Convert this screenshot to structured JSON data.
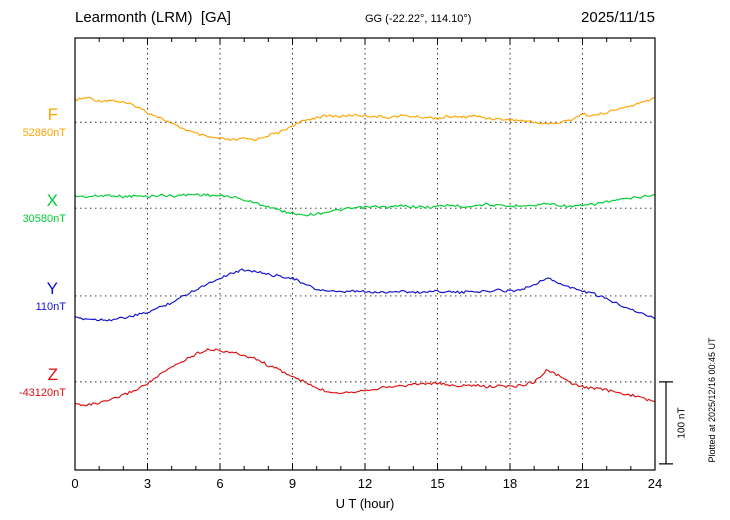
{
  "header": {
    "station": "Learmonth (LRM)  [GA]",
    "coords": "GG (-22.22°, 114.10°)",
    "date": "2025/11/15"
  },
  "channels": [
    {
      "id": "F",
      "label": "F",
      "value_label": "52860nT",
      "color": "#FFA500"
    },
    {
      "id": "X",
      "label": "X",
      "value_label": "30580nT",
      "color": "#00CC33"
    },
    {
      "id": "Y",
      "label": "Y",
      "value_label": "110nT",
      "color": "#1111CC"
    },
    {
      "id": "Z",
      "label": "Z",
      "value_label": "-43120nT",
      "color": "#DD1111"
    }
  ],
  "xaxis": {
    "label": "U T (hour)",
    "ticks": [
      0,
      3,
      6,
      9,
      12,
      15,
      18,
      21,
      24
    ],
    "range": [
      0,
      24
    ]
  },
  "scale_bar": {
    "label": "100 nT",
    "nT": 100
  },
  "side_note": "Plotted at 2025/12/16 00:45 UT",
  "chart_data": {
    "type": "line",
    "title": "Learmonth (LRM) [GA] magnetogram",
    "xlabel": "U T (hour)",
    "x_range_hours": [
      0,
      24
    ],
    "x_step_hours": 0.5,
    "grid": "dotted vertical every 3 h, dotted horizontal at each channel baseline",
    "scale_bar_nT": 100,
    "series": [
      {
        "name": "F",
        "baseline_nT": 52860,
        "offsets_nT": [
          27,
          30,
          26,
          27,
          24,
          20,
          12,
          6,
          -2,
          -8,
          -14,
          -18,
          -20,
          -22,
          -20,
          -21,
          -16,
          -12,
          -4,
          2,
          6,
          8,
          7,
          9,
          8,
          7,
          6,
          8,
          7,
          6,
          5,
          7,
          6,
          8,
          5,
          4,
          3,
          2,
          0,
          -2,
          -1,
          3,
          10,
          8,
          12,
          16,
          20,
          24,
          30
        ]
      },
      {
        "name": "X",
        "baseline_nT": 30580,
        "offsets_nT": [
          15,
          14,
          15,
          16,
          14,
          15,
          14,
          16,
          15,
          16,
          17,
          16,
          15,
          14,
          10,
          6,
          2,
          -3,
          -6,
          -8,
          -7,
          -4,
          -2,
          0,
          1,
          2,
          1,
          3,
          2,
          1,
          2,
          4,
          2,
          3,
          5,
          3,
          2,
          4,
          3,
          6,
          4,
          2,
          3,
          5,
          8,
          10,
          12,
          14,
          17
        ]
      },
      {
        "name": "Y",
        "baseline_nT": 110,
        "offsets_nT": [
          -27,
          -28,
          -29,
          -29,
          -27,
          -24,
          -20,
          -14,
          -8,
          0,
          8,
          15,
          22,
          28,
          32,
          30,
          26,
          24,
          22,
          14,
          8,
          6,
          4,
          6,
          5,
          4,
          5,
          6,
          4,
          5,
          6,
          5,
          4,
          6,
          5,
          7,
          6,
          8,
          14,
          22,
          16,
          10,
          6,
          2,
          -4,
          -10,
          -16,
          -22,
          -28
        ]
      },
      {
        "name": "Z",
        "baseline_nT": -43120,
        "offsets_nT": [
          -27,
          -28,
          -26,
          -22,
          -16,
          -10,
          -2,
          8,
          18,
          26,
          34,
          40,
          38,
          36,
          32,
          28,
          20,
          14,
          6,
          0,
          -8,
          -12,
          -13,
          -12,
          -10,
          -8,
          -6,
          -5,
          -3,
          -2,
          -2,
          -4,
          -5,
          -4,
          -6,
          -5,
          -6,
          -4,
          0,
          14,
          8,
          -2,
          -6,
          -8,
          -10,
          -14,
          -16,
          -20,
          -24
        ]
      }
    ]
  }
}
